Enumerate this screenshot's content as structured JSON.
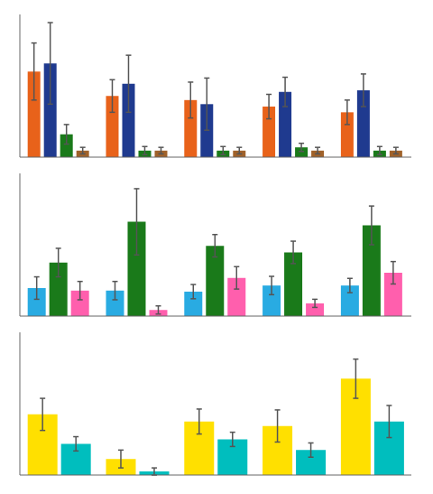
{
  "chart_data": [
    {
      "type": "bar",
      "categories": [
        null,
        null,
        null,
        null,
        null
      ],
      "series": [
        {
          "color": "#E8621A",
          "values": [
            105,
            75,
            70,
            62,
            55
          ],
          "errors": [
            35,
            20,
            22,
            15,
            15
          ]
        },
        {
          "color": "#1F3A8F",
          "values": [
            115,
            90,
            65,
            80,
            82
          ],
          "errors": [
            50,
            35,
            32,
            18,
            20
          ]
        },
        {
          "color": "#1A7A1A",
          "values": [
            28,
            8,
            8,
            12,
            8
          ],
          "errors": [
            12,
            5,
            5,
            5,
            5
          ]
        },
        {
          "color": "#A0622A",
          "values": [
            8,
            8,
            8,
            8,
            8
          ],
          "errors": [
            4,
            4,
            4,
            4,
            4
          ]
        }
      ],
      "ylim": [
        0,
        175
      ],
      "yticks": [],
      "tick_labels": false
    },
    {
      "type": "bar",
      "categories": [
        null,
        null,
        null,
        null,
        null
      ],
      "series": [
        {
          "color": "#29ABE2",
          "values": [
            55,
            50,
            48,
            60,
            60
          ],
          "errors": [
            22,
            18,
            14,
            18,
            14
          ]
        },
        {
          "color": "#1A7A1A",
          "values": [
            105,
            185,
            138,
            125,
            178
          ],
          "errors": [
            28,
            65,
            22,
            22,
            38
          ]
        },
        {
          "color": "#FF5FAD",
          "values": [
            50,
            12,
            75,
            25,
            85
          ],
          "errors": [
            18,
            8,
            22,
            8,
            22
          ]
        }
      ],
      "ylim": [
        0,
        280
      ],
      "yticks": [],
      "tick_labels": false
    },
    {
      "type": "bar",
      "categories": [
        null,
        null,
        null,
        null,
        null
      ],
      "series": [
        {
          "color": "#FFE000",
          "values": [
            68,
            18,
            60,
            55,
            108
          ],
          "errors": [
            18,
            10,
            14,
            18,
            22
          ]
        },
        {
          "color": "#00BEBE",
          "values": [
            35,
            4,
            40,
            28,
            60
          ],
          "errors": [
            8,
            4,
            8,
            8,
            18
          ]
        }
      ],
      "ylim": [
        0,
        160
      ],
      "yticks": [],
      "tick_labels": false
    }
  ]
}
